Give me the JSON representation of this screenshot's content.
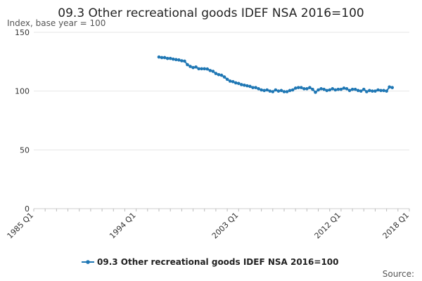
{
  "chart_data": {
    "type": "line",
    "title": "09.3 Other recreational goods IDEF NSA 2016=100",
    "ylabel": "Index, base year = 100",
    "xlabel": "",
    "ylim": [
      0,
      150
    ],
    "yticks": [
      0,
      50,
      100,
      150
    ],
    "x_tick_labels": [
      "1985 Q1",
      "1994 Q1",
      "2003 Q1",
      "2012 Q1",
      "2018 Q1"
    ],
    "x_tick_values": [
      1985,
      1994,
      2003,
      2012,
      2018
    ],
    "xlim": [
      1985,
      2018
    ],
    "grid": "horizontal",
    "legend_position": "bottom",
    "series": [
      {
        "name": "09.3 Other recreational goods IDEF NSA 2016=100",
        "color": "#1f77b4",
        "points": [
          [
            "1996 Q1",
            129.0
          ],
          [
            "1996 Q2",
            128.5
          ],
          [
            "1996 Q3",
            128.5
          ],
          [
            "1996 Q4",
            127.8
          ],
          [
            "1997 Q1",
            127.8
          ],
          [
            "1997 Q2",
            127.2
          ],
          [
            "1997 Q3",
            126.8
          ],
          [
            "1997 Q4",
            126.5
          ],
          [
            "1998 Q1",
            125.8
          ],
          [
            "1998 Q2",
            125.5
          ],
          [
            "1998 Q3",
            122.5
          ],
          [
            "1998 Q4",
            121.0
          ],
          [
            "1999 Q1",
            120.0
          ],
          [
            "1999 Q2",
            120.5
          ],
          [
            "1999 Q3",
            119.0
          ],
          [
            "1999 Q4",
            119.0
          ],
          [
            "2000 Q1",
            119.0
          ],
          [
            "2000 Q2",
            118.8
          ],
          [
            "2000 Q3",
            117.5
          ],
          [
            "2000 Q4",
            116.8
          ],
          [
            "2001 Q1",
            115.0
          ],
          [
            "2001 Q2",
            114.0
          ],
          [
            "2001 Q3",
            113.5
          ],
          [
            "2001 Q4",
            112.0
          ],
          [
            "2002 Q1",
            110.0
          ],
          [
            "2002 Q2",
            108.5
          ],
          [
            "2002 Q3",
            108.0
          ],
          [
            "2002 Q4",
            107.0
          ],
          [
            "2003 Q1",
            106.5
          ],
          [
            "2003 Q2",
            105.5
          ],
          [
            "2003 Q3",
            105.0
          ],
          [
            "2003 Q4",
            104.5
          ],
          [
            "2004 Q1",
            104.0
          ],
          [
            "2004 Q2",
            103.0
          ],
          [
            "2004 Q3",
            103.0
          ],
          [
            "2004 Q4",
            102.0
          ],
          [
            "2005 Q1",
            101.0
          ],
          [
            "2005 Q2",
            100.5
          ],
          [
            "2005 Q3",
            101.0
          ],
          [
            "2005 Q4",
            100.0
          ],
          [
            "2006 Q1",
            99.5
          ],
          [
            "2006 Q2",
            101.0
          ],
          [
            "2006 Q3",
            100.0
          ],
          [
            "2006 Q4",
            100.5
          ],
          [
            "2007 Q1",
            99.5
          ],
          [
            "2007 Q2",
            99.5
          ],
          [
            "2007 Q3",
            100.5
          ],
          [
            "2007 Q4",
            101.0
          ],
          [
            "2008 Q1",
            102.5
          ],
          [
            "2008 Q2",
            103.0
          ],
          [
            "2008 Q3",
            103.0
          ],
          [
            "2008 Q4",
            102.0
          ],
          [
            "2009 Q1",
            102.0
          ],
          [
            "2009 Q2",
            103.0
          ],
          [
            "2009 Q3",
            101.5
          ],
          [
            "2009 Q4",
            99.0
          ],
          [
            "2010 Q1",
            101.0
          ],
          [
            "2010 Q2",
            102.0
          ],
          [
            "2010 Q3",
            101.5
          ],
          [
            "2010 Q4",
            100.5
          ],
          [
            "2011 Q1",
            101.0
          ],
          [
            "2011 Q2",
            102.0
          ],
          [
            "2011 Q3",
            101.0
          ],
          [
            "2011 Q4",
            101.5
          ],
          [
            "2012 Q1",
            101.5
          ],
          [
            "2012 Q2",
            102.5
          ],
          [
            "2012 Q3",
            102.0
          ],
          [
            "2012 Q4",
            100.5
          ],
          [
            "2013 Q1",
            101.5
          ],
          [
            "2013 Q2",
            101.5
          ],
          [
            "2013 Q3",
            100.5
          ],
          [
            "2013 Q4",
            100.0
          ],
          [
            "2014 Q1",
            101.5
          ],
          [
            "2014 Q2",
            99.5
          ],
          [
            "2014 Q3",
            100.5
          ],
          [
            "2014 Q4",
            100.0
          ],
          [
            "2015 Q1",
            100.0
          ],
          [
            "2015 Q2",
            101.0
          ],
          [
            "2015 Q3",
            100.5
          ],
          [
            "2015 Q4",
            100.5
          ],
          [
            "2016 Q1",
            100.0
          ],
          [
            "2016 Q2",
            103.5
          ],
          [
            "2016 Q3",
            103.0
          ]
        ]
      }
    ]
  },
  "legend": {
    "label": "09.3 Other recreational goods IDEF NSA 2016=100"
  },
  "source": {
    "label": "Source:"
  }
}
